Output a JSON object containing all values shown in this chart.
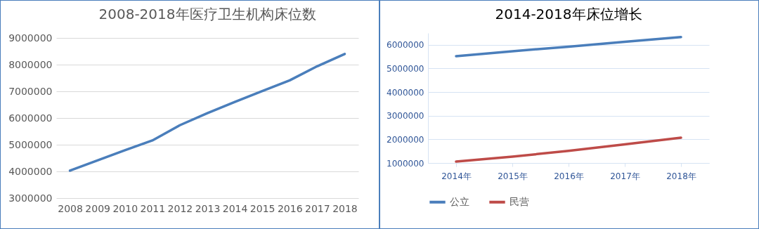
{
  "chart_data": [
    {
      "type": "line",
      "title": "2008-2018年医疗卫生机构床位数",
      "categories": [
        "2008",
        "2009",
        "2010",
        "2011",
        "2012",
        "2013",
        "2014",
        "2015",
        "2016",
        "2017",
        "2018"
      ],
      "series": [
        {
          "color": "#4a7ebb",
          "values": [
            4030000,
            4410000,
            4790000,
            5160000,
            5730000,
            6180000,
            6600000,
            7010000,
            7410000,
            7940000,
            8400000
          ]
        }
      ],
      "ylim": [
        3000000,
        9000000
      ],
      "yticks": [
        3000000,
        4000000,
        5000000,
        6000000,
        7000000,
        8000000,
        9000000
      ],
      "grid": "y"
    },
    {
      "type": "line",
      "title": "2014-2018年床位增长",
      "categories": [
        "2014年",
        "2015年",
        "2016年",
        "2017年",
        "2018年"
      ],
      "series": [
        {
          "name": "公立",
          "color": "#4a7ebb",
          "values": [
            5520000,
            5730000,
            5920000,
            6130000,
            6330000
          ]
        },
        {
          "name": "民营",
          "color": "#be4b48",
          "values": [
            1060000,
            1270000,
            1510000,
            1790000,
            2070000
          ]
        }
      ],
      "ylim": [
        1000000,
        6500000
      ],
      "yticks": [
        1000000,
        2000000,
        3000000,
        4000000,
        5000000,
        6000000
      ],
      "grid": "y",
      "legend": "bottom"
    }
  ]
}
